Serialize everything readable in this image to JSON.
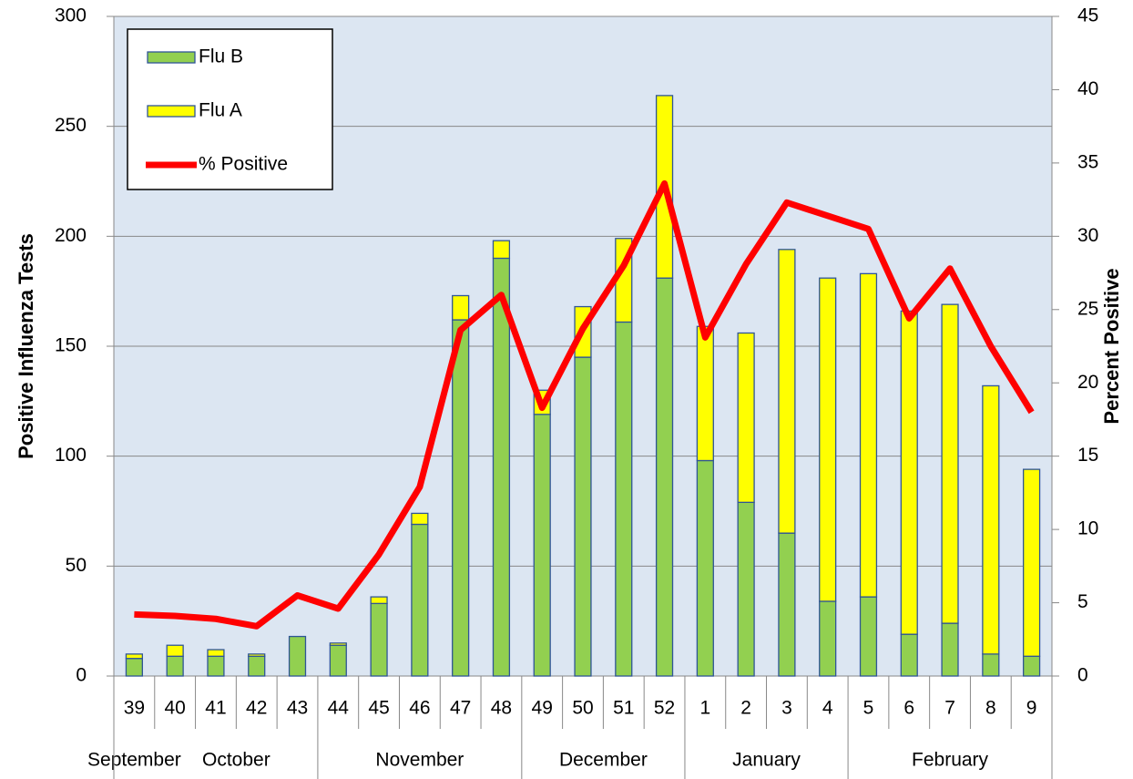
{
  "chart_data": {
    "type": "bar",
    "stacked": true,
    "y_label": "Positive Influenza Tests",
    "y2_label": "Percent Positive",
    "categories": [
      "39",
      "40",
      "41",
      "42",
      "43",
      "44",
      "45",
      "46",
      "47",
      "48",
      "49",
      "50",
      "51",
      "52",
      "1",
      "2",
      "3",
      "4",
      "5",
      "6",
      "7",
      "8",
      "9"
    ],
    "category_groups": [
      {
        "label": "September",
        "span": 1
      },
      {
        "label": "October",
        "span": 4
      },
      {
        "label": "November",
        "span": 5
      },
      {
        "label": "December",
        "span": 4
      },
      {
        "label": "January",
        "span": 4
      },
      {
        "label": "February",
        "span": 5
      }
    ],
    "series": [
      {
        "name": "Flu B",
        "type": "bar",
        "color": "#92d050",
        "values": [
          8,
          9,
          9,
          9,
          18,
          14,
          33,
          69,
          162,
          190,
          119,
          145,
          161,
          181,
          98,
          79,
          65,
          34,
          36,
          19,
          24,
          10,
          9
        ]
      },
      {
        "name": "Flu A",
        "type": "bar",
        "color": "#ffff00",
        "values": [
          2,
          5,
          3,
          1,
          0,
          1,
          3,
          5,
          11,
          8,
          11,
          23,
          38,
          83,
          61,
          77,
          129,
          147,
          147,
          147,
          145,
          122,
          85
        ]
      },
      {
        "name": "% Positive",
        "type": "line",
        "axis": "y2",
        "color": "#ff0000",
        "values": [
          4.2,
          4.1,
          3.9,
          3.4,
          5.5,
          4.6,
          8.3,
          12.9,
          23.6,
          26.0,
          18.3,
          23.7,
          28.0,
          33.6,
          23.1,
          28.1,
          32.3,
          31.4,
          30.5,
          24.4,
          27.8,
          22.5,
          18.0
        ]
      }
    ],
    "ylim": [
      0,
      300
    ],
    "yticks": [
      0,
      50,
      100,
      150,
      200,
      250,
      300
    ],
    "y2lim": [
      0,
      45
    ],
    "y2ticks": [
      0,
      5,
      10,
      15,
      20,
      25,
      30,
      35,
      40,
      45
    ],
    "grid": true,
    "legend": "upper left"
  }
}
